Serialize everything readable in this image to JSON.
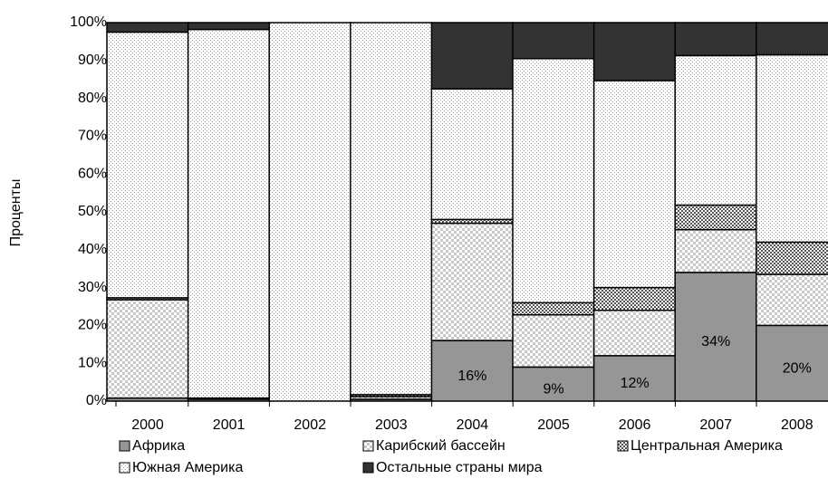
{
  "chart_data": {
    "type": "stacked-bar",
    "y_label": "Проценты",
    "categories": [
      "2000",
      "2001",
      "2002",
      "2003",
      "2004",
      "2005",
      "2006",
      "2007",
      "2008"
    ],
    "series": [
      {
        "name": "Африка",
        "color": "#969696",
        "pattern": "solid",
        "values": [
          0.8,
          0.5,
          0,
          0.5,
          16,
          9,
          12,
          34,
          20
        ],
        "value_labels": [
          null,
          null,
          null,
          null,
          "16%",
          "9%",
          "12%",
          "34%",
          "20%"
        ]
      },
      {
        "name": "Карибский бассейн",
        "color": "#ffffff",
        "pattern": "checker",
        "values": [
          26,
          0.3,
          0,
          0.7,
          31,
          13.8,
          12,
          11.3,
          13.5
        ]
      },
      {
        "name": "Центральная Америка",
        "color": "#ffffff",
        "pattern": "dense-checker",
        "values": [
          0.5,
          0,
          0,
          0.5,
          1,
          3.2,
          6,
          6.5,
          8.5
        ]
      },
      {
        "name": "Южная Америка",
        "color": "#ffffff",
        "pattern": "dots",
        "values": [
          70.2,
          97.4,
          100,
          98.3,
          34.5,
          64.5,
          54.7,
          39.5,
          49.5
        ]
      },
      {
        "name": "Остальные страны мира",
        "color": "#333333",
        "pattern": "solid",
        "values": [
          2.5,
          1.8,
          0,
          0,
          17.5,
          9.5,
          15.3,
          8.7,
          8.5
        ]
      }
    ],
    "ylim": [
      0,
      100
    ],
    "yticks": [
      {
        "value": 0,
        "label": "0%"
      },
      {
        "value": 10,
        "label": "10%"
      },
      {
        "value": 20,
        "label": "20%"
      },
      {
        "value": 30,
        "label": "30%"
      },
      {
        "value": 40,
        "label": "40%"
      },
      {
        "value": 50,
        "label": "50%"
      },
      {
        "value": 60,
        "label": "60%"
      },
      {
        "value": 70,
        "label": "70%"
      },
      {
        "value": 80,
        "label": "80%"
      },
      {
        "value": 90,
        "label": "90%"
      },
      {
        "value": 100,
        "label": "100%"
      }
    ],
    "legend": "bottom"
  }
}
